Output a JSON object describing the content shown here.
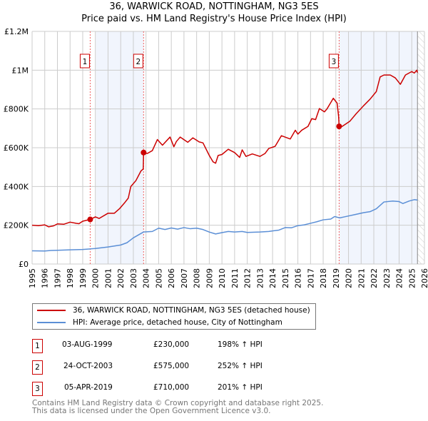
{
  "title_line1": "36, WARWICK ROAD, NOTTINGHAM, NG3 5ES",
  "title_line2": "Price paid vs. HM Land Registry's House Price Index (HPI)",
  "legend": [
    {
      "label": "36, WARWICK ROAD, NOTTINGHAM, NG3 5ES (detached house)",
      "color": "#cc0000"
    },
    {
      "label": "HPI: Average price, detached house, City of Nottingham",
      "color": "#5b8fd6"
    }
  ],
  "sales": [
    {
      "num": "1",
      "date": "03-AUG-1999",
      "price": "£230,000",
      "hpi": "198% ↑ HPI",
      "x": 1999.59,
      "y": 230000
    },
    {
      "num": "2",
      "date": "24-OCT-2003",
      "price": "£575,000",
      "hpi": "252% ↑ HPI",
      "x": 2003.81,
      "y": 575000
    },
    {
      "num": "3",
      "date": "05-APR-2019",
      "price": "£710,000",
      "hpi": "201% ↑ HPI",
      "x": 2019.26,
      "y": 710000
    }
  ],
  "footer": [
    "Contains HM Land Registry data © Crown copyright and database right 2025.",
    "This data is licensed under the Open Government Licence v3.0."
  ],
  "chart_data": {
    "type": "line",
    "xlim": [
      1995,
      2026
    ],
    "ylim": [
      0,
      1200000
    ],
    "x_ticks": [
      "1995",
      "1996",
      "1997",
      "1998",
      "1999",
      "2000",
      "2001",
      "2002",
      "2003",
      "2004",
      "2005",
      "2006",
      "2007",
      "2008",
      "2009",
      "2010",
      "2011",
      "2012",
      "2013",
      "2014",
      "2015",
      "2016",
      "2017",
      "2018",
      "2019",
      "2020",
      "2021",
      "2022",
      "2023",
      "2024",
      "2025",
      "2026"
    ],
    "y_ticks": [
      {
        "v": 0,
        "label": "£0"
      },
      {
        "v": 200000,
        "label": "£200K"
      },
      {
        "v": 400000,
        "label": "£400K"
      },
      {
        "v": 600000,
        "label": "£600K"
      },
      {
        "v": 800000,
        "label": "£800K"
      },
      {
        "v": 1000000,
        "label": "£1M"
      },
      {
        "v": 1200000,
        "label": "£1.2M"
      }
    ],
    "shaded": [
      [
        2000.05,
        2003.81
      ],
      [
        2019.26,
        2025.45
      ]
    ],
    "future_from": 2025.45,
    "series": [
      {
        "name": "36, WARWICK ROAD, NOTTINGHAM, NG3 5ES (detached house)",
        "color": "#cc0000",
        "points": [
          [
            1995,
            200000
          ],
          [
            1995.5,
            198000
          ],
          [
            1996,
            202000
          ],
          [
            1996.3,
            192000
          ],
          [
            1996.7,
            197000
          ],
          [
            1997,
            207000
          ],
          [
            1997.5,
            205000
          ],
          [
            1998,
            216000
          ],
          [
            1998.5,
            210000
          ],
          [
            1998.7,
            208000
          ],
          [
            1999,
            221000
          ],
          [
            1999.59,
            230000
          ],
          [
            2000,
            243000
          ],
          [
            2000.3,
            235000
          ],
          [
            2001,
            262000
          ],
          [
            2001.5,
            262000
          ],
          [
            2001.9,
            285000
          ],
          [
            2002.3,
            315000
          ],
          [
            2002.6,
            340000
          ],
          [
            2002.8,
            400000
          ],
          [
            2003.2,
            430000
          ],
          [
            2003.6,
            480000
          ],
          [
            2003.78,
            490000
          ],
          [
            2003.81,
            575000
          ],
          [
            2004.1,
            570000
          ],
          [
            2004.5,
            585000
          ],
          [
            2004.9,
            642000
          ],
          [
            2005.3,
            613000
          ],
          [
            2005.9,
            655000
          ],
          [
            2006.2,
            605000
          ],
          [
            2006.4,
            632000
          ],
          [
            2006.7,
            655000
          ],
          [
            2007.3,
            628000
          ],
          [
            2007.7,
            651000
          ],
          [
            2008.2,
            630000
          ],
          [
            2008.5,
            625000
          ],
          [
            2009,
            560000
          ],
          [
            2009.3,
            527000
          ],
          [
            2009.5,
            520000
          ],
          [
            2009.7,
            560000
          ],
          [
            2010,
            565000
          ],
          [
            2010.5,
            592000
          ],
          [
            2011,
            575000
          ],
          [
            2011.4,
            550000
          ],
          [
            2011.6,
            589000
          ],
          [
            2011.9,
            555000
          ],
          [
            2012.4,
            568000
          ],
          [
            2013,
            555000
          ],
          [
            2013.4,
            570000
          ],
          [
            2013.7,
            596000
          ],
          [
            2014.2,
            607000
          ],
          [
            2014.7,
            662000
          ],
          [
            2015.4,
            645000
          ],
          [
            2015.8,
            690000
          ],
          [
            2016.0,
            670000
          ],
          [
            2016.3,
            690000
          ],
          [
            2016.8,
            710000
          ],
          [
            2017.1,
            750000
          ],
          [
            2017.4,
            745000
          ],
          [
            2017.7,
            802000
          ],
          [
            2018.1,
            785000
          ],
          [
            2018.3,
            800000
          ],
          [
            2018.8,
            855000
          ],
          [
            2019.1,
            830000
          ],
          [
            2019.22,
            760000
          ],
          [
            2019.26,
            710000
          ],
          [
            2019.5,
            710000
          ],
          [
            2020.1,
            736000
          ],
          [
            2020.6,
            775000
          ],
          [
            2021.2,
            817000
          ],
          [
            2021.7,
            850000
          ],
          [
            2022.2,
            890000
          ],
          [
            2022.5,
            965000
          ],
          [
            2022.8,
            975000
          ],
          [
            2023.3,
            975000
          ],
          [
            2023.7,
            960000
          ],
          [
            2024.1,
            927000
          ],
          [
            2024.5,
            975000
          ],
          [
            2025.0,
            993000
          ],
          [
            2025.2,
            985000
          ],
          [
            2025.4,
            1000000
          ],
          [
            2025.45,
            987000
          ]
        ]
      },
      {
        "name": "HPI: Average price, detached house, City of Nottingham",
        "color": "#5b8fd6",
        "points": [
          [
            1995,
            68000
          ],
          [
            1996,
            67000
          ],
          [
            1996.5,
            70000
          ],
          [
            1997,
            71000
          ],
          [
            1998,
            73000
          ],
          [
            1999,
            75000
          ],
          [
            2000,
            80000
          ],
          [
            2001,
            88000
          ],
          [
            2002,
            98000
          ],
          [
            2002.5,
            110000
          ],
          [
            2003,
            135000
          ],
          [
            2003.8,
            165000
          ],
          [
            2004.5,
            168000
          ],
          [
            2005,
            185000
          ],
          [
            2005.5,
            178000
          ],
          [
            2006,
            186000
          ],
          [
            2006.5,
            180000
          ],
          [
            2007,
            188000
          ],
          [
            2007.5,
            182000
          ],
          [
            2008,
            185000
          ],
          [
            2008.5,
            178000
          ],
          [
            2009,
            165000
          ],
          [
            2009.5,
            155000
          ],
          [
            2010,
            162000
          ],
          [
            2010.5,
            168000
          ],
          [
            2011,
            165000
          ],
          [
            2011.6,
            168000
          ],
          [
            2012,
            163000
          ],
          [
            2013,
            165000
          ],
          [
            2013.7,
            168000
          ],
          [
            2014.5,
            175000
          ],
          [
            2015,
            188000
          ],
          [
            2015.5,
            187000
          ],
          [
            2016,
            198000
          ],
          [
            2016.5,
            202000
          ],
          [
            2017,
            210000
          ],
          [
            2017.5,
            218000
          ],
          [
            2018,
            228000
          ],
          [
            2018.6,
            232000
          ],
          [
            2018.9,
            245000
          ],
          [
            2019.3,
            238000
          ],
          [
            2019.8,
            245000
          ],
          [
            2020.5,
            255000
          ],
          [
            2021.2,
            265000
          ],
          [
            2021.7,
            270000
          ],
          [
            2022.2,
            285000
          ],
          [
            2022.8,
            320000
          ],
          [
            2023.5,
            325000
          ],
          [
            2024,
            322000
          ],
          [
            2024.3,
            312000
          ],
          [
            2024.8,
            325000
          ],
          [
            2025.2,
            332000
          ],
          [
            2025.45,
            330000
          ]
        ]
      }
    ]
  }
}
